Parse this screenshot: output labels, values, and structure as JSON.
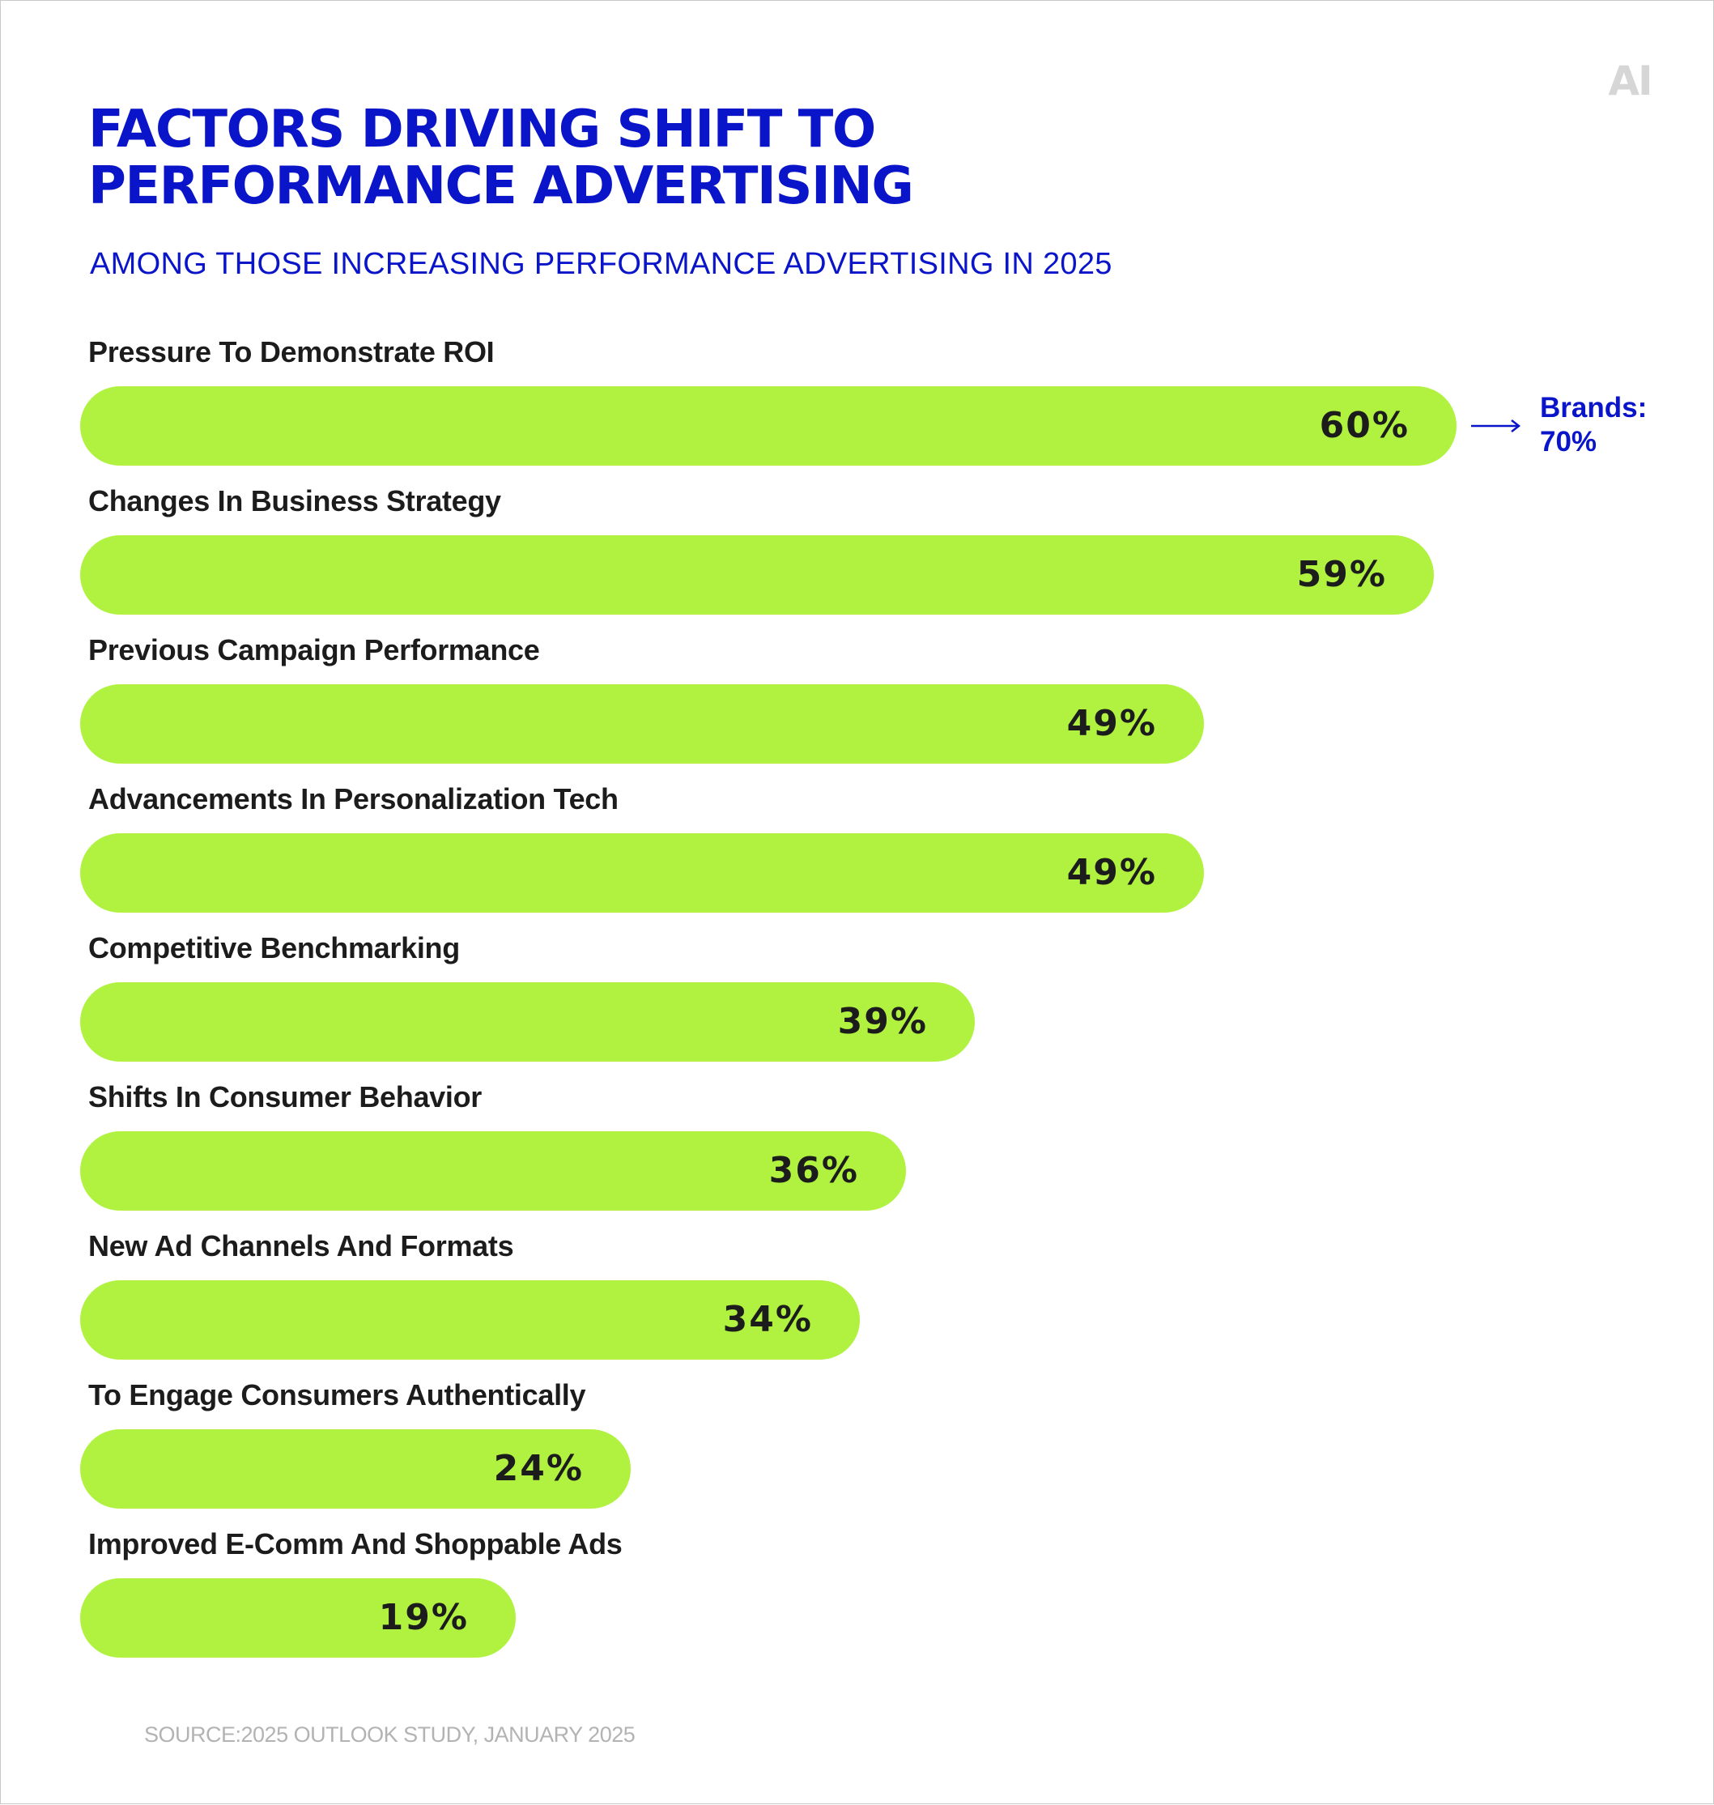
{
  "logo": {
    "text": "AI",
    "color": "#d6d6d6"
  },
  "title": {
    "line1": "FACTORS DRIVING SHIFT TO",
    "line2": "PERFORMANCE ADVERTISING"
  },
  "subtitle": "AMONG THOSE INCREASING PERFORMANCE ADVERTISING IN 2025",
  "colors": {
    "accent": "#0a15c9",
    "bar": "#b0f23f",
    "text": "#1c1c1c"
  },
  "chart_data": {
    "type": "bar",
    "orientation": "horizontal",
    "title": "FACTORS DRIVING SHIFT TO PERFORMANCE ADVERTISING",
    "subtitle": "AMONG THOSE INCREASING PERFORMANCE ADVERTISING IN 2025",
    "xlabel": "",
    "ylabel": "",
    "xlim": [
      0,
      60
    ],
    "grid": false,
    "categories": [
      "Pressure To Demonstrate ROI",
      "Changes In Business Strategy",
      "Previous Campaign Performance",
      "Advancements In Personalization Tech",
      "Competitive Benchmarking",
      "Shifts In Consumer Behavior",
      "New Ad Channels And Formats",
      "To Engage Consumers Authentically",
      "Improved E-Comm And Shoppable Ads"
    ],
    "values": [
      60,
      59,
      49,
      49,
      39,
      36,
      34,
      24,
      19
    ],
    "value_labels": [
      "60%",
      "59%",
      "49%",
      "49%",
      "39%",
      "36%",
      "34%",
      "24%",
      "19%"
    ],
    "annotations": [
      {
        "category": "Pressure To Demonstrate ROI",
        "label": "Brands:",
        "value": "70%"
      }
    ]
  },
  "source": "SOURCE:2025 OUTLOOK STUDY,  JANUARY 2025"
}
